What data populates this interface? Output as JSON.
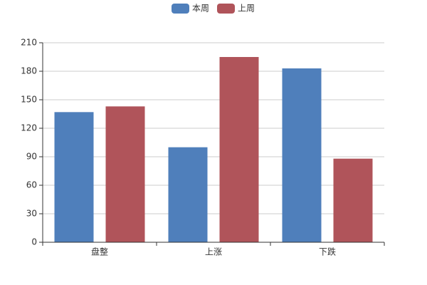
{
  "chart_data": {
    "type": "bar",
    "categories": [
      "盘整",
      "上涨",
      "下跌"
    ],
    "series": [
      {
        "name": "本周",
        "color": "#4f7fbb",
        "values": [
          137,
          100,
          183
        ]
      },
      {
        "name": "上周",
        "color": "#b0545a",
        "values": [
          143,
          195,
          88
        ]
      }
    ],
    "ylim": [
      0,
      210
    ],
    "yticks": [
      0,
      30,
      60,
      90,
      120,
      150,
      180,
      210
    ],
    "grid": true
  }
}
